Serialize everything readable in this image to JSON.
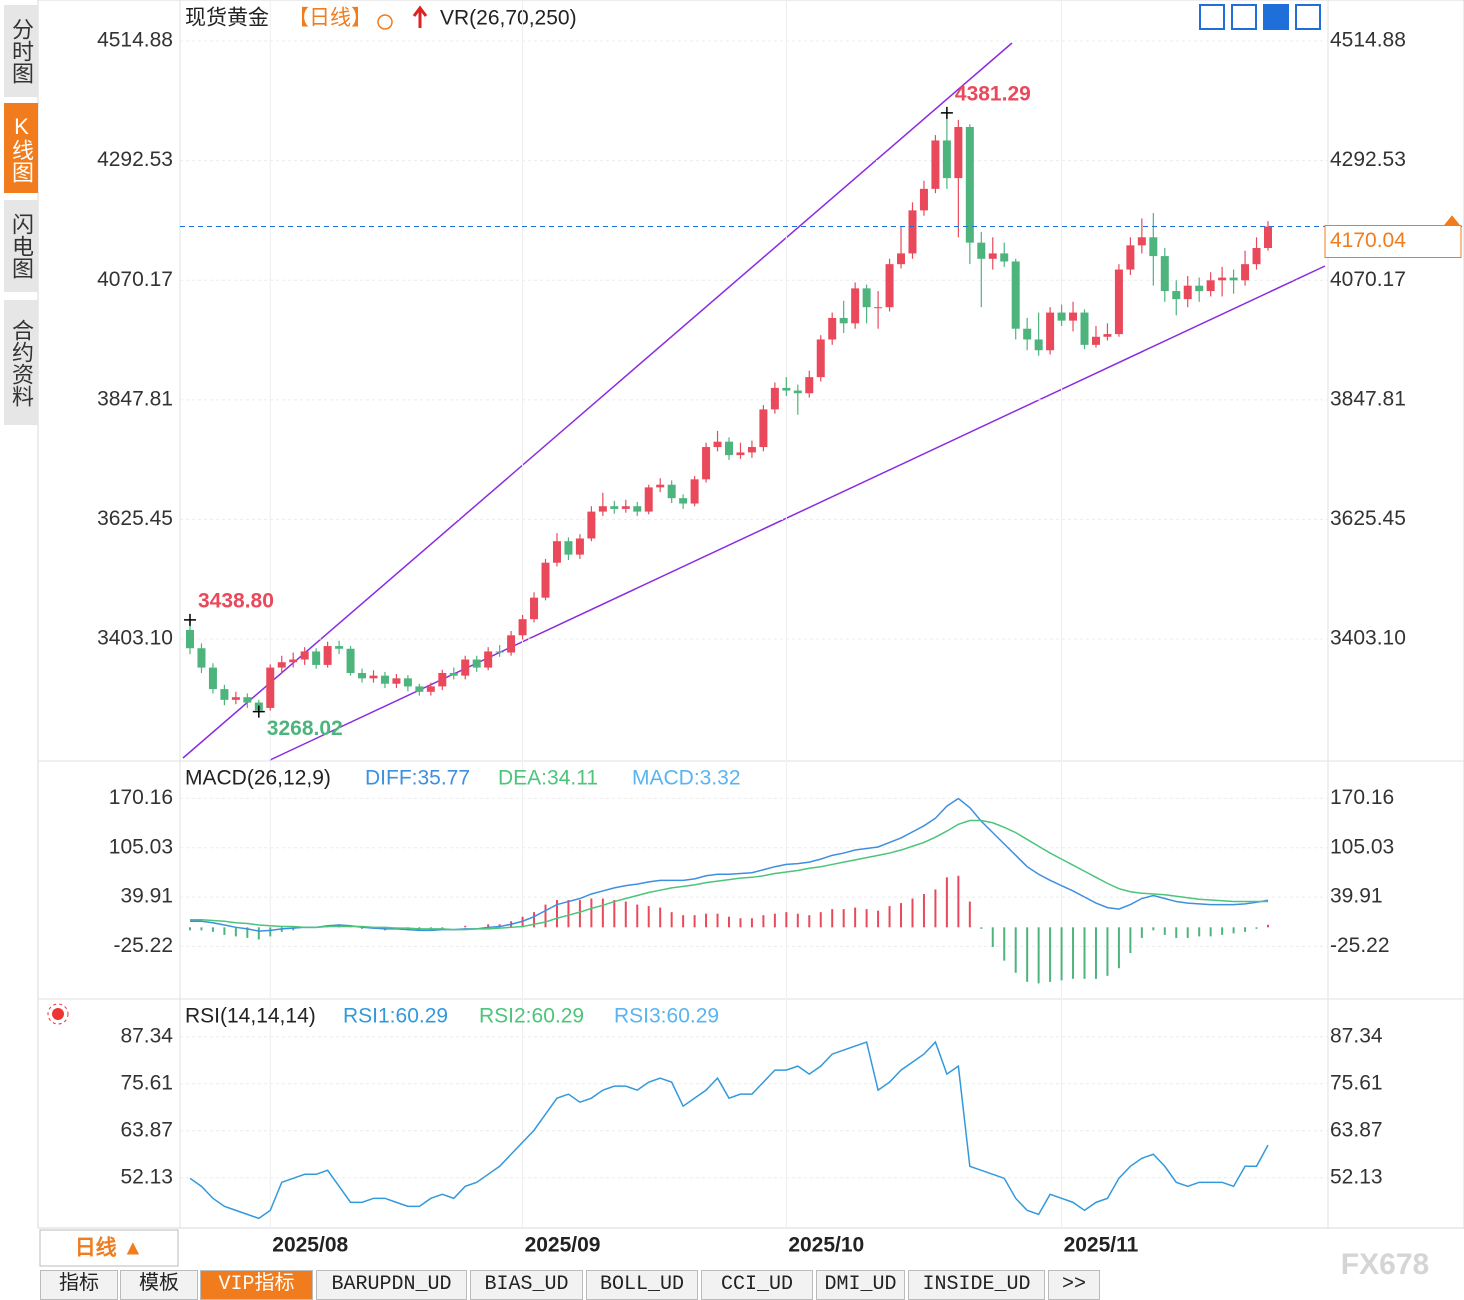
{
  "chart_data": [
    {
      "type": "candlestick",
      "title": "现货黄金",
      "period": "【日线】",
      "indicator": "VR(26,70,250)",
      "up_color": "#e9495b",
      "down_color": "#4db47d",
      "open": [
        3420,
        3386,
        3350,
        3310,
        3290,
        3295,
        3285,
        3275,
        3350,
        3360,
        3365,
        3380,
        3355,
        3390,
        3385,
        3340,
        3330,
        3335,
        3320,
        3330,
        3315,
        3305,
        3315,
        3340,
        3335,
        3365,
        3350,
        3380,
        3378,
        3410,
        3440,
        3480,
        3545,
        3585,
        3560,
        3590,
        3640,
        3650,
        3645,
        3650,
        3640,
        3685,
        3690,
        3665,
        3655,
        3700,
        3760,
        3770,
        3745,
        3750,
        3760,
        3830,
        3870,
        3865,
        3860,
        3890,
        3960,
        4000,
        3990,
        4055,
        4020,
        4020,
        4100,
        4120,
        4200,
        4240,
        4330,
        4260,
        4355,
        4140,
        4110,
        4120,
        4105,
        3980,
        3960,
        3940,
        4010,
        3995,
        4010,
        3950,
        3965,
        3970,
        4090,
        4135,
        4150,
        4115,
        4050,
        4035,
        4060,
        4050,
        4070,
        4075,
        4070,
        4100,
        4130
      ],
      "high": [
        3438.8,
        3395,
        3358,
        3318,
        3305,
        3302,
        3290,
        3356,
        3372,
        3378,
        3388,
        3386,
        3398,
        3400,
        3390,
        3348,
        3345,
        3342,
        3338,
        3336,
        3320,
        3322,
        3346,
        3350,
        3372,
        3372,
        3388,
        3392,
        3418,
        3448,
        3490,
        3552,
        3600,
        3592,
        3598,
        3650,
        3675,
        3660,
        3662,
        3658,
        3690,
        3702,
        3698,
        3672,
        3706,
        3768,
        3790,
        3778,
        3768,
        3772,
        3838,
        3880,
        3890,
        3876,
        3902,
        3968,
        4010,
        4032,
        4066,
        4062,
        4050,
        4110,
        4170,
        4215,
        4255,
        4340,
        4381.29,
        4368,
        4360,
        4160,
        4150,
        4140,
        4110,
        4000,
        4010,
        4020,
        4025,
        4030,
        4016,
        3985,
        3990,
        4100,
        4150,
        4185,
        4195,
        4130,
        4070,
        4078,
        4075,
        4085,
        4095,
        4090,
        4125,
        4150,
        4180
      ],
      "low": [
        3375,
        3340,
        3302,
        3280,
        3282,
        3275,
        3268.02,
        3270,
        3340,
        3350,
        3355,
        3348,
        3350,
        3375,
        3335,
        3322,
        3322,
        3312,
        3312,
        3306,
        3298,
        3298,
        3308,
        3328,
        3328,
        3342,
        3345,
        3370,
        3372,
        3402,
        3434,
        3475,
        3538,
        3550,
        3552,
        3585,
        3632,
        3636,
        3638,
        3632,
        3635,
        3676,
        3656,
        3645,
        3650,
        3694,
        3752,
        3736,
        3738,
        3740,
        3752,
        3822,
        3855,
        3820,
        3852,
        3882,
        3950,
        3972,
        3980,
        3990,
        3980,
        4012,
        4092,
        4110,
        4190,
        4232,
        4240,
        4150,
        4100,
        4020,
        4090,
        4095,
        3960,
        3940,
        3930,
        3932,
        3985,
        3975,
        3942,
        3945,
        3958,
        3965,
        4080,
        4120,
        4060,
        4030,
        4005,
        4020,
        4030,
        4040,
        4040,
        4045,
        4060,
        4090,
        4125
      ],
      "close": [
        3386,
        3350,
        3310,
        3290,
        3295,
        3285,
        3270,
        3350,
        3360,
        3365,
        3380,
        3355,
        3390,
        3385,
        3340,
        3330,
        3335,
        3320,
        3330,
        3315,
        3305,
        3315,
        3340,
        3335,
        3365,
        3350,
        3380,
        3378,
        3410,
        3440,
        3480,
        3545,
        3585,
        3560,
        3590,
        3640,
        3650,
        3645,
        3650,
        3640,
        3685,
        3690,
        3665,
        3655,
        3700,
        3760,
        3770,
        3745,
        3750,
        3760,
        3830,
        3870,
        3865,
        3860,
        3890,
        3960,
        4000,
        3990,
        4055,
        4020,
        4020,
        4100,
        4120,
        4200,
        4240,
        4330,
        4260,
        4355,
        4140,
        4110,
        4120,
        4105,
        3980,
        3960,
        3940,
        4010,
        3995,
        4010,
        3950,
        3965,
        3970,
        4090,
        4135,
        4150,
        4115,
        4050,
        4035,
        4060,
        4050,
        4070,
        4075,
        4070,
        4100,
        4130,
        4170.04
      ],
      "value_labels": {
        "high": {
          "0": "3438.80",
          "66": "4381.29"
        },
        "low": {
          "6": "3268.02"
        }
      },
      "ylim": [
        3178.2,
        4591.1
      ],
      "yticks": [
        4514.88,
        4292.53,
        4070.17,
        3847.81,
        3625.45,
        {
          "value": 3403.1,
          "label": "3403.10"
        }
      ],
      "xticks": [
        {
          "value": 7,
          "label": "2025/08"
        },
        {
          "value": 29,
          "label": "2025/09"
        },
        {
          "value": 52,
          "label": "2025/10"
        },
        {
          "value": 76,
          "label": "2025/11"
        }
      ]
    },
    {
      "type": "macd",
      "title": "MACD(26,12,9)",
      "series": [
        {
          "name": "DIFF:35.77",
          "color": "#3d8fe0",
          "values": [
            8,
            8,
            6,
            3,
            0,
            -2,
            -5,
            -4,
            -2,
            -1,
            0,
            0,
            2,
            3,
            2,
            0,
            -1,
            -2,
            -2,
            -3,
            -4,
            -4,
            -3,
            -3,
            -2,
            -2,
            0,
            1,
            4,
            8,
            14,
            22,
            30,
            34,
            38,
            44,
            48,
            52,
            55,
            57,
            60,
            62,
            62,
            62,
            64,
            68,
            70,
            70,
            71,
            72,
            76,
            80,
            83,
            84,
            86,
            90,
            95,
            98,
            102,
            104,
            106,
            112,
            118,
            126,
            134,
            144,
            160,
            170,
            158,
            140,
            125,
            110,
            95,
            80,
            70,
            62,
            55,
            48,
            40,
            32,
            26,
            24,
            30,
            38,
            42,
            38,
            34,
            32,
            31,
            30,
            30,
            30,
            31,
            33,
            35.77
          ]
        },
        {
          "name": "DEA:34.11",
          "color": "#4cc47a",
          "values": [
            10,
            10,
            9,
            8,
            6,
            5,
            3,
            2,
            1,
            1,
            0,
            0,
            1,
            1,
            1,
            1,
            0,
            0,
            -1,
            -1,
            -2,
            -2,
            -2,
            -3,
            -3,
            -2,
            -2,
            -1,
            0,
            1,
            4,
            7,
            12,
            16,
            20,
            25,
            29,
            34,
            38,
            42,
            46,
            49,
            52,
            54,
            56,
            59,
            61,
            63,
            65,
            66,
            68,
            71,
            73,
            75,
            78,
            80,
            83,
            86,
            89,
            92,
            95,
            98,
            102,
            107,
            112,
            119,
            127,
            136,
            141,
            141,
            138,
            132,
            125,
            116,
            107,
            98,
            90,
            82,
            74,
            66,
            58,
            51,
            47,
            45,
            44,
            43,
            41,
            39,
            37,
            36,
            35,
            34,
            34,
            34,
            34.11
          ]
        },
        {
          "name": "MACD:3.32",
          "type": "bar",
          "color": "#5ab4f0",
          "positive_color": "#e9495b",
          "negative_color": "#4db47d",
          "values": [
            -4,
            -4,
            -6,
            -10,
            -12,
            -14,
            -16,
            -12,
            -6,
            -4,
            0,
            0,
            2,
            4,
            2,
            -2,
            -2,
            -4,
            -2,
            -4,
            -4,
            -4,
            -2,
            0,
            2,
            0,
            4,
            4,
            8,
            14,
            20,
            30,
            36,
            36,
            36,
            38,
            38,
            36,
            34,
            30,
            28,
            26,
            20,
            16,
            16,
            18,
            18,
            14,
            12,
            12,
            16,
            18,
            20,
            18,
            16,
            20,
            24,
            24,
            26,
            24,
            22,
            28,
            32,
            38,
            44,
            50,
            66,
            68,
            34,
            -2,
            -26,
            -44,
            -60,
            -72,
            -74,
            -72,
            -70,
            -68,
            -68,
            -68,
            -64,
            -54,
            -34,
            -14,
            -4,
            -10,
            -14,
            -14,
            -12,
            -12,
            -10,
            -8,
            -6,
            -2,
            3.32
          ]
        }
      ],
      "ylim": [
        -93.3,
        218.2
      ],
      "yticks": [
        170.16,
        105.03,
        39.91,
        -25.22
      ]
    },
    {
      "type": "line",
      "title": "RSI(14,14,14)",
      "series": [
        {
          "name": "RSI1:60.29",
          "color": "#3399dd",
          "values": [
            52,
            50,
            47,
            45,
            44,
            43,
            42,
            44,
            51,
            52,
            53,
            53,
            54,
            50,
            46,
            46,
            47,
            47,
            46,
            45,
            45,
            47,
            48,
            47,
            50,
            51,
            53,
            55,
            58,
            61,
            64,
            68,
            72,
            73,
            71,
            72,
            74,
            75,
            75,
            74,
            76,
            77,
            76,
            70,
            72,
            74,
            77,
            72,
            73,
            73,
            76,
            79,
            79,
            80,
            78,
            80,
            83,
            84,
            85,
            86,
            74,
            76,
            79,
            81,
            83,
            86,
            78,
            80,
            55,
            54,
            53,
            52,
            47,
            44,
            43,
            48,
            47,
            46,
            44,
            46,
            47,
            52,
            55,
            57,
            58,
            55,
            51,
            50,
            51,
            51,
            51,
            50,
            55,
            55,
            60.29
          ]
        },
        {
          "name": "RSI2:60.29",
          "color": "#4cc47a"
        },
        {
          "name": "RSI3:60.29",
          "color": "#5ab4f0"
        }
      ],
      "ylim": [
        39.6,
        96.5
      ],
      "yticks": [
        87.34,
        75.61,
        63.87,
        52.13
      ]
    }
  ],
  "ui": {
    "side_tabs": [
      "分时图",
      "K线图",
      "闪电图",
      "合约资料"
    ],
    "period_button": "日线 ▲",
    "bottom_tabs": [
      "指标",
      "模板",
      "VIP指标",
      "BARUPDN_UD",
      "BIAS_UD",
      "BOLL_UD",
      "CCI_UD",
      "DMI_UD",
      "INSIDE_UD",
      ">>"
    ],
    "watermark": "FX678"
  }
}
